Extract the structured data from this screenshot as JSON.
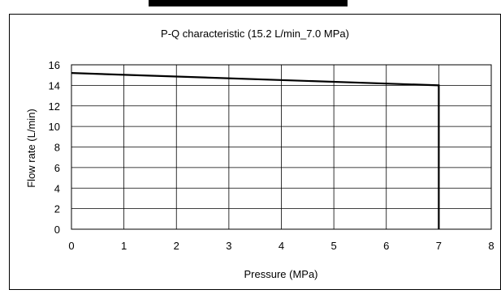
{
  "chart_data": {
    "type": "line",
    "title": "P-Q characteristic (15.2 L/min_7.0 MPa)",
    "xlabel": "Pressure (MPa)",
    "ylabel": "Flow rate (L/min)",
    "xlim": [
      0,
      8
    ],
    "ylim": [
      0,
      16
    ],
    "x_ticks": [
      0,
      1,
      2,
      3,
      4,
      5,
      6,
      7,
      8
    ],
    "y_ticks": [
      0,
      2,
      4,
      6,
      8,
      10,
      12,
      14,
      16
    ],
    "grid": true,
    "legend": "none",
    "series": [
      {
        "color": "#000000",
        "x": [
          0,
          7,
          7
        ],
        "y": [
          15.2,
          14.0,
          0
        ]
      }
    ]
  }
}
